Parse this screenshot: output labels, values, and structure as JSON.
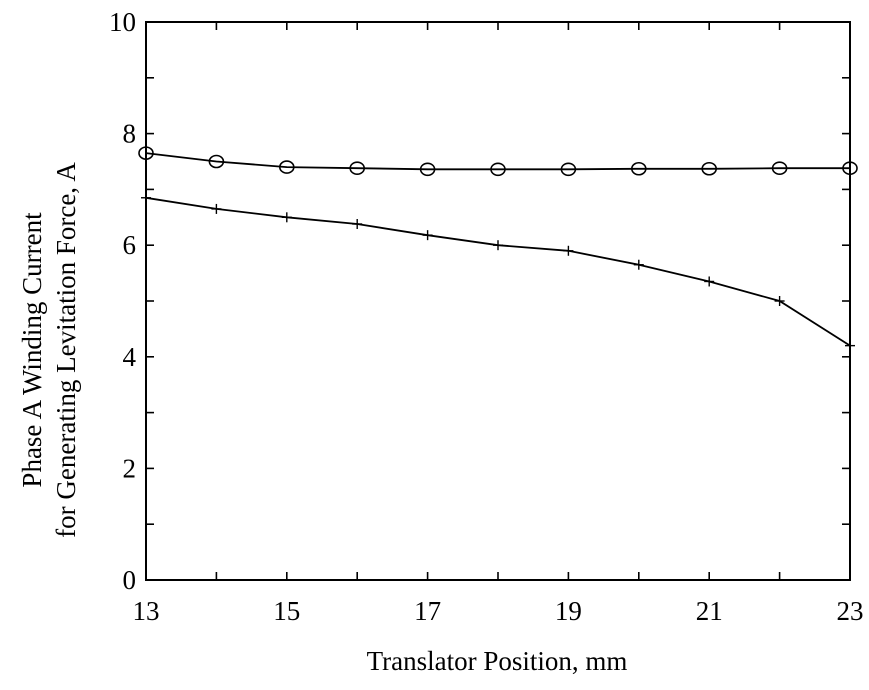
{
  "chart_data": {
    "type": "line",
    "title": "",
    "xlabel": "Translator Position, mm",
    "ylabel_line1": "Phase A Winding Current",
    "ylabel_line2": "for Generating Levitation Force, A",
    "xlim": [
      13,
      23
    ],
    "ylim": [
      0,
      10
    ],
    "xticks": [
      13,
      15,
      17,
      19,
      21,
      23
    ],
    "yticks": [
      0,
      2,
      4,
      6,
      8,
      10
    ],
    "x": [
      13,
      14,
      15,
      16,
      17,
      18,
      19,
      20,
      21,
      22,
      23
    ],
    "series": [
      {
        "marker": "o",
        "values": [
          7.65,
          7.5,
          7.4,
          7.38,
          7.36,
          7.36,
          7.36,
          7.37,
          7.37,
          7.38,
          7.38
        ]
      },
      {
        "marker": "+",
        "values": [
          6.85,
          6.65,
          6.5,
          6.38,
          6.18,
          6.0,
          5.9,
          5.65,
          5.35,
          5.0,
          4.2
        ]
      }
    ],
    "grid": false,
    "legend": "none",
    "colors": {
      "line": "#000000",
      "background": "#ffffff"
    }
  }
}
